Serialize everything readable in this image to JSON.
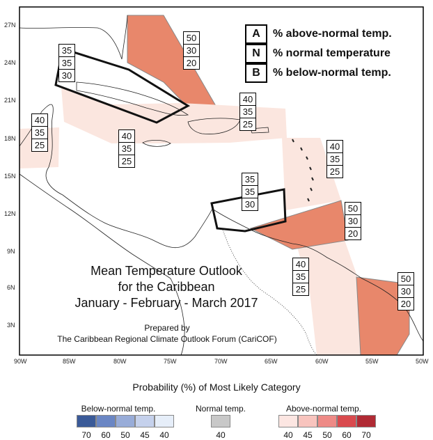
{
  "title": {
    "line1": "Mean Temperature Outlook",
    "line2": "for the Caribbean",
    "line3": "January - February - March 2017"
  },
  "credit": {
    "line1": "Prepared by",
    "line2": "The Caribbean Regional Climate Outlook Forum (CariCOF)"
  },
  "key": [
    {
      "letter": "A",
      "text": "% above-normal temp."
    },
    {
      "letter": "N",
      "text": "% normal temperature"
    },
    {
      "letter": "B",
      "text": "% below-normal temp."
    }
  ],
  "axes": {
    "lat_labels": [
      "27N",
      "24N",
      "21N",
      "18N",
      "15N",
      "12N",
      "9N",
      "6N",
      "3N"
    ],
    "lon_labels": [
      "90W",
      "85W",
      "80W",
      "75W",
      "70W",
      "65W",
      "60W",
      "55W",
      "50W"
    ]
  },
  "regions": [
    {
      "id": "bahamas",
      "above": "50",
      "normal": "30",
      "below": "20",
      "category": "above-50"
    },
    {
      "id": "cuba",
      "above": "35",
      "normal": "35",
      "below": "30",
      "category": "normal"
    },
    {
      "id": "hispaniola-pr",
      "above": "40",
      "normal": "35",
      "below": "25",
      "category": "above-40"
    },
    {
      "id": "jamaica-caymans",
      "above": "40",
      "normal": "35",
      "below": "25",
      "category": "above-40"
    },
    {
      "id": "belize",
      "above": "40",
      "normal": "35",
      "below": "25",
      "category": "above-40"
    },
    {
      "id": "lesser-antilles",
      "above": "40",
      "normal": "35",
      "below": "25",
      "category": "above-40"
    },
    {
      "id": "abc-islands",
      "above": "35",
      "normal": "35",
      "below": "30",
      "category": "normal"
    },
    {
      "id": "trinidad-tobago",
      "above": "50",
      "normal": "30",
      "below": "20",
      "category": "above-50"
    },
    {
      "id": "guyana",
      "above": "40",
      "normal": "35",
      "below": "25",
      "category": "above-40"
    },
    {
      "id": "suriname-guiana",
      "above": "50",
      "normal": "30",
      "below": "20",
      "category": "above-50"
    }
  ],
  "colorbar": {
    "title": "Probability (%) of Most Likely Category",
    "below": {
      "label": "Below-normal temp.",
      "values": [
        "70",
        "60",
        "50",
        "45",
        "40"
      ],
      "colors": [
        "#3a5a98",
        "#6a86c4",
        "#98acd8",
        "#c5d1ec",
        "#e6eef9"
      ]
    },
    "normal": {
      "label": "Normal temp.",
      "values": [
        "40"
      ],
      "colors": [
        "#c8c8c8"
      ]
    },
    "above": {
      "label": "Above-normal temp.",
      "values": [
        "40",
        "45",
        "50",
        "60",
        "70"
      ],
      "colors": [
        "#fce6e2",
        "#f8c4be",
        "#ee8a86",
        "#d94a4e",
        "#b02a34"
      ]
    }
  }
}
